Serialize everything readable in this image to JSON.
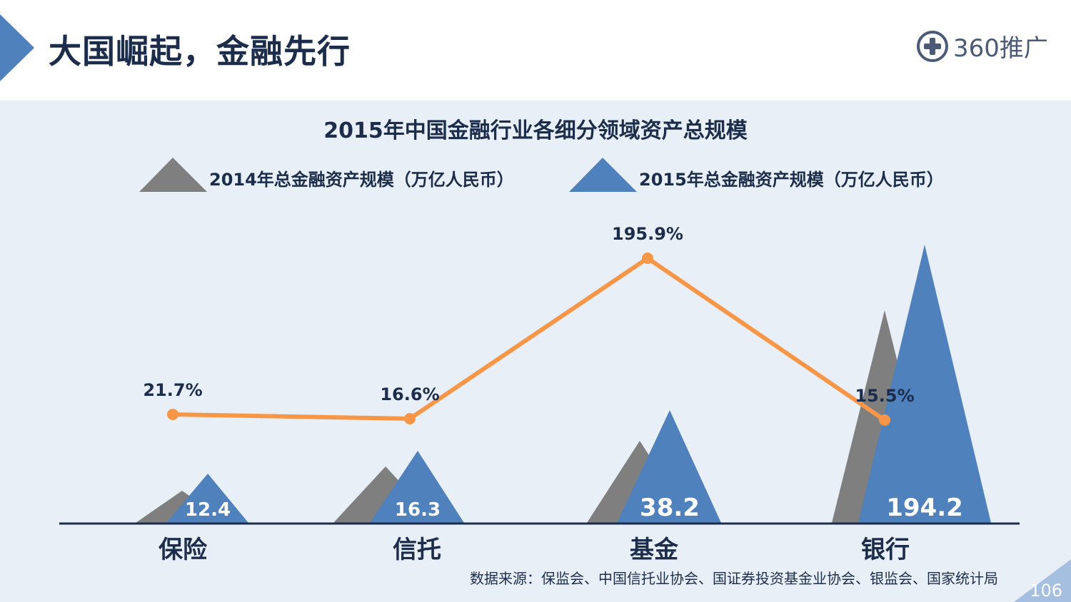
{
  "header": {
    "title": "大国崛起，金融先行",
    "logo_text": "360推广"
  },
  "chart_data": {
    "type": "area",
    "title": "2015年中国金融行业各细分领域资产总规模",
    "categories": [
      "保险",
      "信托",
      "基金",
      "银行"
    ],
    "series": [
      {
        "name": "2014年总金融资产规模（万亿人民币）",
        "color": "#7f7f7f"
      },
      {
        "name": "2015年总金融资产规模（万亿人民币）",
        "color": "#4f81bd",
        "values": [
          12.4,
          16.3,
          38.2,
          194.2
        ],
        "labels": [
          "12.4",
          "16.3",
          "38.2",
          "194.2"
        ]
      }
    ],
    "growth": {
      "values": [
        21.7,
        16.6,
        195.9,
        15.5
      ],
      "labels": [
        "21.7%",
        "16.6%",
        "195.9%",
        "15.5%"
      ],
      "color": "#f79646"
    },
    "legend": "top"
  },
  "footer": {
    "source": "数据来源：保监会、中国信托业协会、国证券投资基金业协会、银监会、国家统计局",
    "page_number": "106"
  }
}
